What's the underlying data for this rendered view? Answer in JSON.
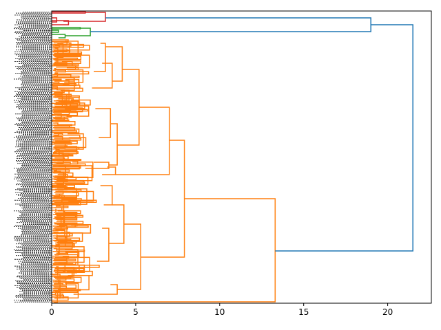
{
  "chart_data": {
    "type": "dendrogram",
    "orientation": "left",
    "title": "",
    "xlabel": "",
    "ylabel": "",
    "xlim": [
      0,
      22.6
    ],
    "x_ticks": [
      0,
      5,
      10,
      15,
      20
    ],
    "x_tick_labels": [
      "0",
      "5",
      "10",
      "15",
      "20"
    ],
    "grid": false,
    "leaf_count_estimate": 300,
    "leaf_labels_legible": false,
    "cluster_colors": {
      "red": "#d62728",
      "green": "#2ca02c",
      "orange": "#ff7f0e",
      "above_threshold_blue": "#1f77b4"
    },
    "clusters": [
      {
        "color": "red",
        "leaf_count": 8,
        "top_merge_height": 3.2
      },
      {
        "color": "green",
        "leaf_count": 8,
        "top_merge_height": 2.3
      },
      {
        "color": "orange",
        "leaf_count": 284,
        "top_merge_height": 13.3
      }
    ],
    "major_merges": [
      {
        "height": 21.5,
        "joins": [
          "red+green",
          "orange"
        ],
        "color": "blue"
      },
      {
        "height": 19.0,
        "joins": [
          "red",
          "green"
        ],
        "color": "blue"
      },
      {
        "height": 13.3,
        "joins": [
          "orange-main",
          "orange-singleton-bottom"
        ],
        "color": "orange"
      },
      {
        "height": 7.9,
        "joins": [
          "orange-upper",
          "orange-lower"
        ],
        "color": "orange"
      },
      {
        "height": 7.0,
        "joins": [
          "orange-upper-a",
          "orange-upper-b"
        ],
        "color": "orange"
      },
      {
        "height": 5.2,
        "joins": [
          "orange-upper-a1",
          "orange-upper-a2"
        ],
        "color": "orange"
      },
      {
        "height": 5.3,
        "joins": [
          "orange-lower-a",
          "orange-lower-b"
        ],
        "color": "orange"
      },
      {
        "height": 4.3,
        "joins": [
          "orange-lower-a1",
          "orange-lower-a2"
        ],
        "color": "orange"
      },
      {
        "height": 4.2,
        "joins": [
          "sub-1",
          "sub-2"
        ],
        "color": "orange"
      },
      {
        "height": 3.9,
        "joins": [
          "sub-3",
          "sub-4"
        ],
        "color": "orange"
      },
      {
        "height": 3.8,
        "joins": [
          "sub-5",
          "sub-6"
        ],
        "color": "orange"
      },
      {
        "height": 3.4,
        "joins": [
          "sub-7",
          "sub-8"
        ],
        "color": "orange"
      },
      {
        "height": 3.3,
        "joins": [
          "sub-9",
          "sub-10"
        ],
        "color": "orange"
      },
      {
        "height": 3.1,
        "joins": [
          "sub-11",
          "sub-12"
        ],
        "color": "orange"
      },
      {
        "height": 2.8,
        "joins": [
          "sub-13",
          "sub-14"
        ],
        "color": "orange"
      },
      {
        "height": 2.6,
        "joins": [
          "sub-15",
          "sub-16"
        ],
        "color": "orange"
      }
    ]
  }
}
